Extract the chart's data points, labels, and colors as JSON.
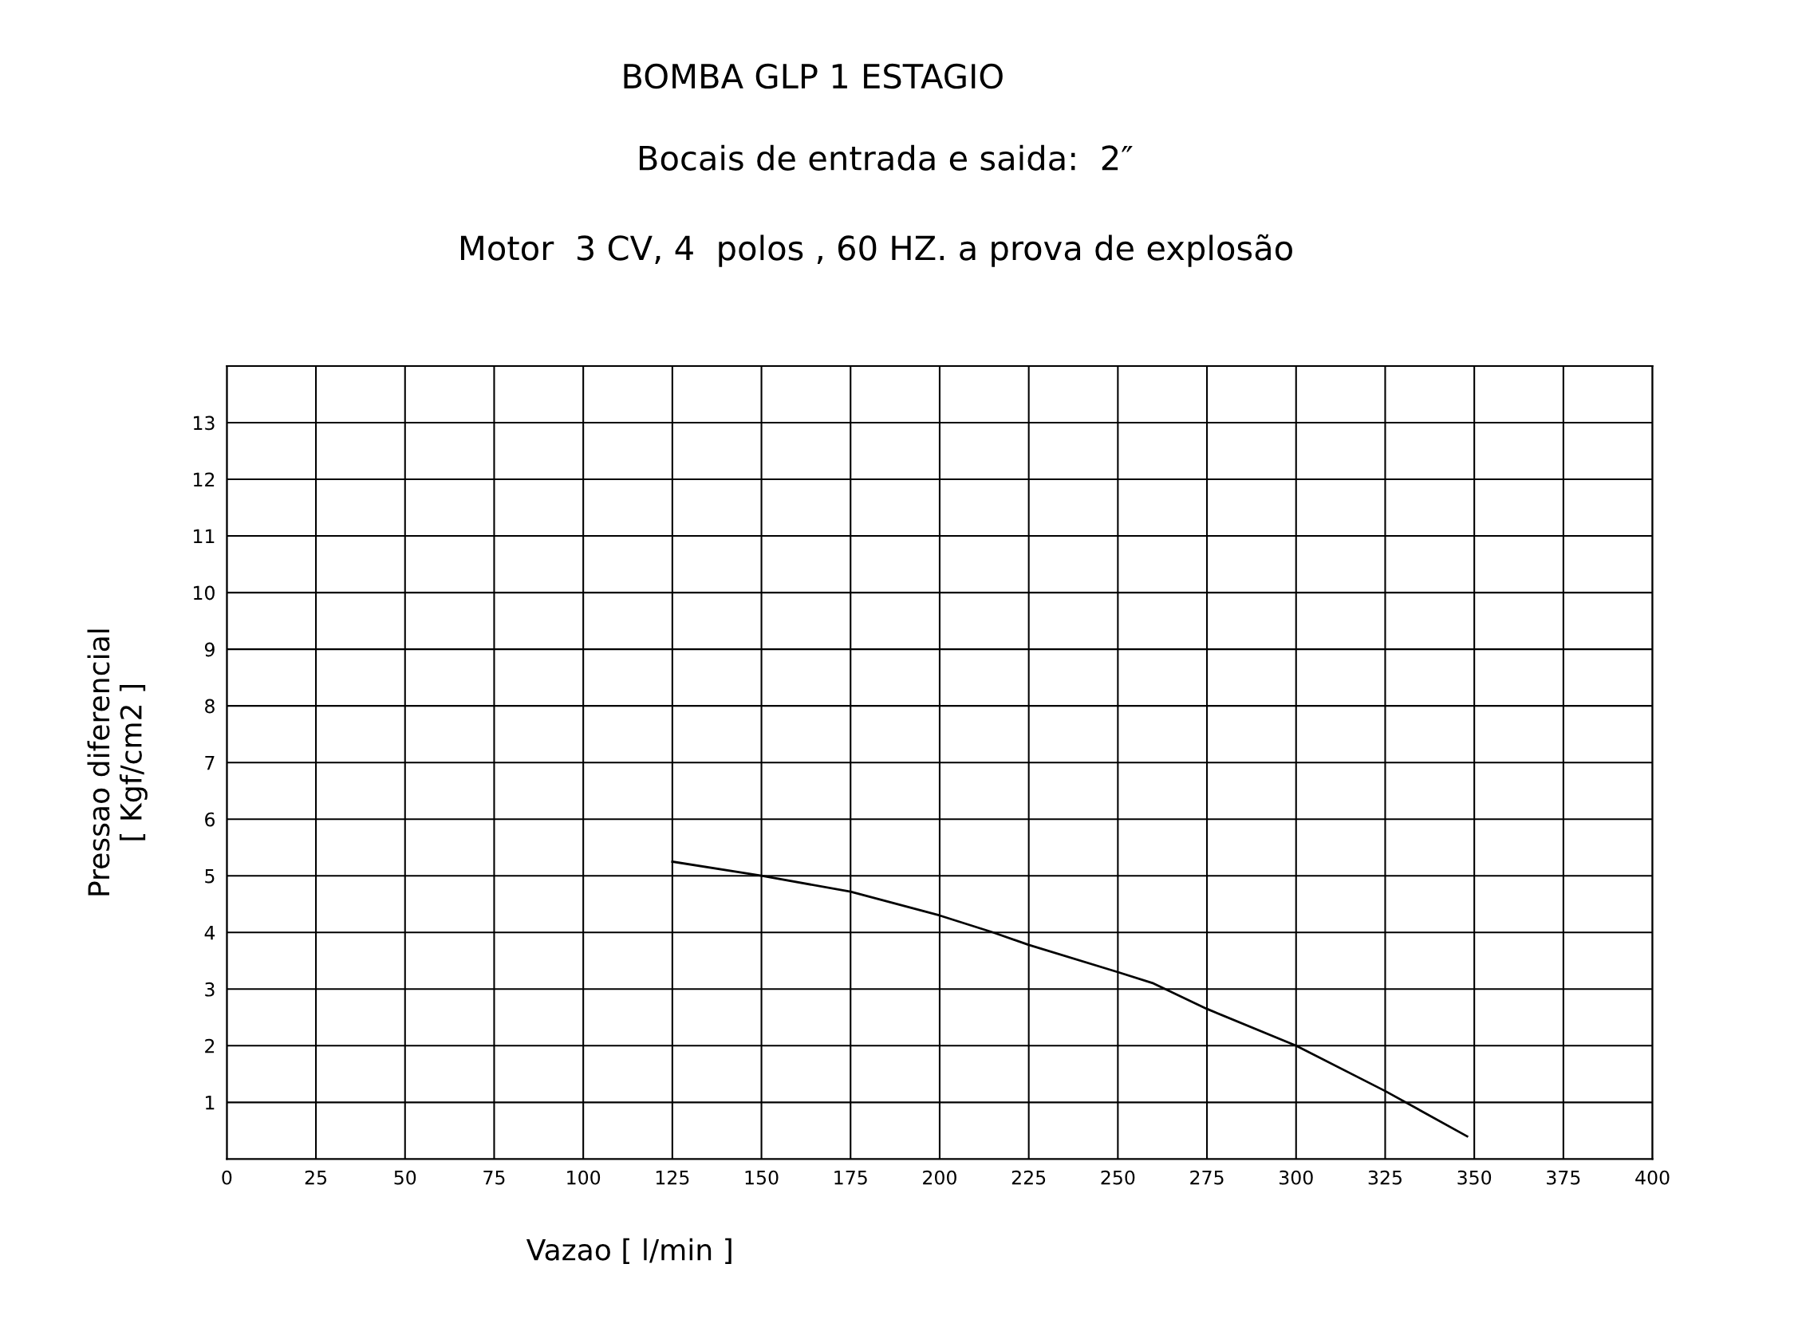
{
  "chart_data": {
    "type": "line",
    "title": "BOMBA GLP 1 ESTAGIO",
    "subtitle": "Bocais de entrada e saida:  2″",
    "annotations": [
      "Motor  3 CV, 4  polos , 60 HZ. a prova de explosão"
    ],
    "xlabel": "Vazao [ l/min ]",
    "ylabel": "Pressao diferencial\n[ Kgf/cm2 ]",
    "xlim": [
      0,
      400
    ],
    "xticks": [
      0,
      25,
      50,
      75,
      100,
      125,
      150,
      175,
      200,
      225,
      250,
      275,
      300,
      325,
      350,
      375,
      400
    ],
    "ylim": [
      0,
      14
    ],
    "yticks": [
      1,
      2,
      3,
      4,
      5,
      6,
      7,
      8,
      9,
      10,
      11,
      12,
      13,
      {
        "value": 14,
        "label": null
      }
    ],
    "grid": true,
    "marker": "none",
    "line_style": "solid",
    "series": [
      {
        "color": "#000000",
        "x": [
          125,
          150,
          175,
          200,
          215,
          225,
          250,
          260,
          275,
          300,
          325,
          348
        ],
        "values": [
          5.25,
          5.0,
          4.72,
          4.3,
          4.0,
          3.78,
          3.3,
          3.1,
          2.65,
          2.0,
          1.2,
          0.4
        ]
      }
    ]
  }
}
